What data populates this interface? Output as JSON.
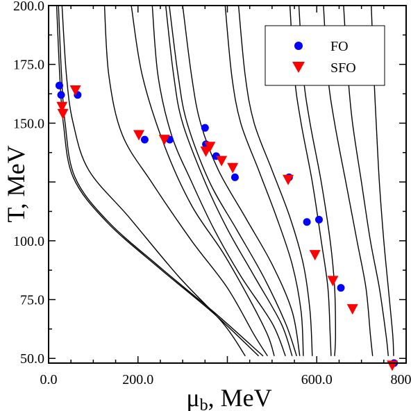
{
  "chart_data": {
    "type": "scatter",
    "xlabel": "μb, MeV",
    "xlabel_main": "μ",
    "xlabel_sub": "b",
    "xlabel_rest": ", MeV",
    "ylabel": "T, MeV",
    "xlim": [
      0,
      800
    ],
    "ylim": [
      48,
      200
    ],
    "xticks": [
      {
        "value": 0,
        "label": "0.0"
      },
      {
        "value": 200,
        "label": "200.0"
      },
      {
        "value": 600,
        "label": "600.0"
      },
      {
        "value": 800,
        "label": "800.0"
      }
    ],
    "yticks": [
      {
        "value": 50,
        "label": "50.0"
      },
      {
        "value": 75,
        "label": "75.0"
      },
      {
        "value": 100,
        "label": "100.0"
      },
      {
        "value": 150,
        "label": "150.0"
      },
      {
        "value": 175,
        "label": "175.0"
      },
      {
        "value": 200,
        "label": "200.0"
      }
    ],
    "x_minor_step": 50,
    "y_minor_step": 12.5,
    "legend_position": "top-right",
    "series": [
      {
        "name": "FO",
        "marker": "circle",
        "color": "#0000ff",
        "points": [
          [
            24,
            166
          ],
          [
            28,
            162
          ],
          [
            65,
            162
          ],
          [
            215,
            143
          ],
          [
            271,
            143
          ],
          [
            350,
            148
          ],
          [
            352,
            141
          ],
          [
            375,
            136
          ],
          [
            417,
            127
          ],
          [
            538,
            127
          ],
          [
            578,
            108
          ],
          [
            605,
            109
          ],
          [
            654,
            80
          ],
          [
            773,
            48
          ]
        ]
      },
      {
        "name": "SFO",
        "marker": "triangle-down",
        "color": "#ff0000",
        "points": [
          [
            30,
            157
          ],
          [
            32,
            154
          ],
          [
            60,
            164
          ],
          [
            202,
            145
          ],
          [
            259,
            143
          ],
          [
            352,
            138
          ],
          [
            361,
            140
          ],
          [
            387,
            134
          ],
          [
            412,
            131
          ],
          [
            536,
            126
          ],
          [
            596,
            94
          ],
          [
            636,
            83
          ],
          [
            680,
            71
          ],
          [
            769,
            47
          ]
        ]
      }
    ],
    "curves": [
      [
        [
          18,
          200
        ],
        [
          25,
          170
        ],
        [
          33,
          150
        ],
        [
          55,
          127
        ],
        [
          130,
          108
        ],
        [
          250,
          88
        ],
        [
          370,
          69
        ],
        [
          470,
          51
        ]
      ],
      [
        [
          22,
          200
        ],
        [
          29,
          170
        ],
        [
          37,
          150
        ],
        [
          59,
          127
        ],
        [
          134,
          108
        ],
        [
          254,
          88
        ],
        [
          374,
          69
        ],
        [
          480,
          51
        ]
      ],
      [
        [
          30,
          200
        ],
        [
          40,
          170
        ],
        [
          55,
          150
        ],
        [
          90,
          130
        ],
        [
          180,
          110
        ],
        [
          290,
          85
        ],
        [
          390,
          65
        ],
        [
          440,
          51
        ]
      ],
      [
        [
          125,
          200
        ],
        [
          135,
          170
        ],
        [
          165,
          145
        ],
        [
          230,
          125
        ],
        [
          320,
          100
        ],
        [
          400,
          80
        ],
        [
          460,
          60
        ],
        [
          490,
          51
        ]
      ],
      [
        [
          185,
          200
        ],
        [
          210,
          170
        ],
        [
          260,
          140
        ],
        [
          320,
          115
        ],
        [
          390,
          95
        ],
        [
          450,
          75
        ],
        [
          490,
          60
        ],
        [
          505,
          51
        ]
      ],
      [
        [
          232,
          200
        ],
        [
          245,
          170
        ],
        [
          275,
          145
        ],
        [
          320,
          125
        ],
        [
          370,
          105
        ],
        [
          430,
          85
        ],
        [
          500,
          65
        ],
        [
          530,
          51
        ]
      ],
      [
        [
          262,
          200
        ],
        [
          280,
          170
        ],
        [
          300,
          150
        ],
        [
          350,
          125
        ],
        [
          400,
          105
        ],
        [
          460,
          85
        ],
        [
          520,
          65
        ],
        [
          545,
          51
        ]
      ],
      [
        [
          270,
          200
        ],
        [
          290,
          170
        ],
        [
          310,
          150
        ],
        [
          360,
          125
        ],
        [
          420,
          105
        ],
        [
          480,
          85
        ],
        [
          530,
          65
        ],
        [
          555,
          51
        ]
      ],
      [
        [
          300,
          200
        ],
        [
          320,
          170
        ],
        [
          340,
          150
        ],
        [
          380,
          130
        ],
        [
          440,
          110
        ],
        [
          500,
          90
        ],
        [
          545,
          70
        ],
        [
          562,
          51
        ]
      ],
      [
        [
          395,
          200
        ],
        [
          410,
          170
        ],
        [
          430,
          150
        ],
        [
          470,
          130
        ],
        [
          510,
          110
        ],
        [
          545,
          90
        ],
        [
          565,
          70
        ],
        [
          570,
          51
        ]
      ],
      [
        [
          425,
          200
        ],
        [
          440,
          170
        ],
        [
          460,
          150
        ],
        [
          500,
          130
        ],
        [
          540,
          110
        ],
        [
          570,
          90
        ],
        [
          585,
          70
        ],
        [
          590,
          51
        ]
      ],
      [
        [
          540,
          200
        ],
        [
          550,
          170
        ],
        [
          565,
          150
        ],
        [
          590,
          125
        ],
        [
          610,
          100
        ],
        [
          625,
          80
        ],
        [
          630,
          60
        ],
        [
          632,
          51
        ]
      ],
      [
        [
          560,
          200
        ],
        [
          570,
          170
        ],
        [
          585,
          150
        ],
        [
          610,
          125
        ],
        [
          630,
          100
        ],
        [
          640,
          80
        ],
        [
          642,
          60
        ],
        [
          640,
          51
        ]
      ],
      [
        [
          615,
          200
        ],
        [
          625,
          170
        ],
        [
          640,
          150
        ],
        [
          665,
          125
        ],
        [
          690,
          100
        ],
        [
          710,
          80
        ],
        [
          720,
          60
        ],
        [
          725,
          51
        ]
      ],
      [
        [
          660,
          200
        ],
        [
          670,
          170
        ],
        [
          680,
          150
        ],
        [
          700,
          125
        ],
        [
          720,
          100
        ],
        [
          740,
          80
        ],
        [
          755,
          60
        ],
        [
          760,
          51
        ]
      ],
      [
        [
          722,
          200
        ],
        [
          728,
          170
        ],
        [
          733,
          150
        ],
        [
          740,
          125
        ],
        [
          750,
          100
        ],
        [
          760,
          80
        ],
        [
          770,
          60
        ],
        [
          772,
          51
        ]
      ]
    ]
  }
}
